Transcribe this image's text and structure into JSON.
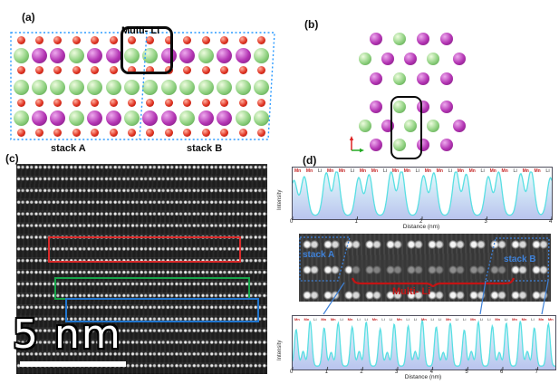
{
  "panels": {
    "a": {
      "label": "(a)",
      "annotation": "Multi- Li",
      "stack_a": "stack A",
      "stack_b": "stack B",
      "border_color": "#2e9bff",
      "atom_colors": {
        "Li": [
          "#eefcdf",
          "#8fd180",
          "#4f9a43"
        ],
        "Mn": [
          "#eeaaee",
          "#b233b2",
          "#771d77"
        ],
        "O": [
          "#ffb0a0",
          "#e03322",
          "#9c1306"
        ]
      },
      "rows": [
        {
          "kind": "O",
          "count": 14
        },
        {
          "kind": "big",
          "pattern": [
            "Li",
            "Mn",
            "Mn",
            "Li",
            "Mn",
            "Mn",
            "Li",
            "Li",
            "Mn",
            "Mn",
            "Li",
            "Mn",
            "Mn",
            "Li"
          ]
        },
        {
          "kind": "O",
          "count": 14
        },
        {
          "kind": "big",
          "pattern": [
            "Li",
            "Li",
            "Li",
            "Li",
            "Li",
            "Li",
            "Li",
            "Li",
            "Li",
            "Li",
            "Li",
            "Li",
            "Li",
            "Li"
          ]
        },
        {
          "kind": "O",
          "count": 14
        },
        {
          "kind": "big",
          "pattern": [
            "Li",
            "Mn",
            "Mn",
            "Li",
            "Mn",
            "Mn",
            "Li",
            "Mn",
            "Mn",
            "Li",
            "Mn",
            "Mn",
            "Li",
            "Li"
          ]
        },
        {
          "kind": "O",
          "count": 14
        }
      ]
    },
    "b": {
      "label": "(b)",
      "clusters": [
        {
          "rows": [
            [
              "Mn",
              "Li",
              "Mn",
              "Mn"
            ],
            [
              "Li",
              "Mn",
              "Mn",
              "Li",
              "Mn"
            ],
            [
              "Mn",
              "Li",
              "Mn",
              "Mn"
            ]
          ]
        },
        {
          "rows": [
            [
              "Mn",
              "Li",
              "Mn",
              "Mn"
            ],
            [
              "Li",
              "Mn",
              "Li",
              "Li",
              "Mn"
            ],
            [
              "Mn",
              "Li",
              "Mn",
              "Mn"
            ]
          ]
        }
      ]
    },
    "c": {
      "label": "(c)",
      "scale_label": "5 nm",
      "highlight_box_colors": [
        "#d92b2b",
        "#17a34a",
        "#2176cf"
      ]
    },
    "d": {
      "label": "(d)",
      "stack_a": "stack A",
      "stack_b": "stack B",
      "annotation": "Multi- Li",
      "annotation_color": "#c41414",
      "stack_label_color": "#3f82d9"
    }
  },
  "chart_data": [
    {
      "type": "area",
      "title": "",
      "xlabel": "Distance (nm)",
      "ylabel": "Intensity",
      "xlim": [
        0,
        4
      ],
      "xticks": [
        0,
        1,
        2,
        3,
        4
      ],
      "grid": false,
      "top_labels": [
        "Mn",
        "Mn",
        "Li",
        "Mn",
        "Mn",
        "Li",
        "Mn",
        "Mn",
        "Li",
        "Mn",
        "Mn",
        "Li",
        "Mn",
        "Mn",
        "Li",
        "Mn",
        "Mn",
        "Li",
        "Mn",
        "Mn",
        "Li",
        "Mn",
        "Mn",
        "Li"
      ],
      "label_colors": {
        "Mn": "#c62828",
        "Li": "#777777"
      },
      "line_color": "#59dfe3",
      "fill_top": "#e2fbfb",
      "fill_bottom": "#b9c4ee",
      "baseline": 0.08,
      "sigma": 0.05,
      "peaks": [
        [
          0.02,
          0.74
        ],
        [
          0.18,
          0.82
        ],
        [
          0.52,
          0.9
        ],
        [
          0.68,
          0.95
        ],
        [
          1.02,
          0.8
        ],
        [
          1.18,
          0.86
        ],
        [
          1.52,
          0.92
        ],
        [
          1.68,
          0.96
        ],
        [
          2.02,
          0.84
        ],
        [
          2.18,
          0.9
        ],
        [
          2.52,
          0.95
        ],
        [
          2.68,
          0.87
        ],
        [
          3.02,
          0.82
        ],
        [
          3.18,
          0.92
        ],
        [
          3.52,
          0.88
        ],
        [
          3.68,
          0.95
        ],
        [
          3.98,
          0.8
        ]
      ]
    },
    {
      "type": "area",
      "title": "",
      "xlabel": "Distance (nm)",
      "ylabel": "Intensity",
      "xlim": [
        0,
        7.5
      ],
      "xticks": [
        0,
        1,
        2,
        3,
        4,
        5,
        6,
        7
      ],
      "grid": false,
      "top_labels": [
        "Mn",
        "Mn",
        "Li",
        "Mn",
        "Mn",
        "Li",
        "Mn",
        "Li",
        "Li",
        "Mn",
        "Li",
        "Li",
        "Mn",
        "Li",
        "Li",
        "Mn",
        "Li",
        "Li",
        "Mn",
        "Li",
        "Li",
        "Mn",
        "Li",
        "Li",
        "Mn",
        "Li",
        "Mn",
        "Mn",
        "Li",
        "Mn",
        "Mn"
      ],
      "label_colors": {
        "Mn": "#c62828",
        "Li": "#777777"
      },
      "line_color": "#59dfe3",
      "fill_top": "#e2fbfb",
      "fill_bottom": "#b9c4ee",
      "baseline": 0.07,
      "sigma": 0.05,
      "peaks": [
        [
          0.1,
          0.75
        ],
        [
          0.3,
          0.3
        ],
        [
          0.5,
          0.92
        ],
        [
          0.9,
          0.78
        ],
        [
          1.1,
          0.28
        ],
        [
          1.3,
          0.88
        ],
        [
          1.7,
          0.8
        ],
        [
          1.9,
          0.3
        ],
        [
          2.1,
          0.9
        ],
        [
          2.5,
          0.76
        ],
        [
          2.7,
          0.28
        ],
        [
          2.9,
          0.86
        ],
        [
          3.3,
          0.82
        ],
        [
          3.5,
          0.3
        ],
        [
          3.7,
          0.94
        ],
        [
          4.1,
          0.8
        ],
        [
          4.3,
          0.28
        ],
        [
          4.5,
          0.88
        ],
        [
          4.9,
          0.74
        ],
        [
          5.1,
          0.3
        ],
        [
          5.3,
          0.9
        ],
        [
          5.7,
          0.82
        ],
        [
          5.9,
          0.28
        ],
        [
          6.1,
          0.88
        ],
        [
          6.5,
          0.92
        ],
        [
          6.7,
          0.3
        ],
        [
          6.9,
          0.78
        ],
        [
          7.3,
          0.86
        ]
      ]
    }
  ]
}
